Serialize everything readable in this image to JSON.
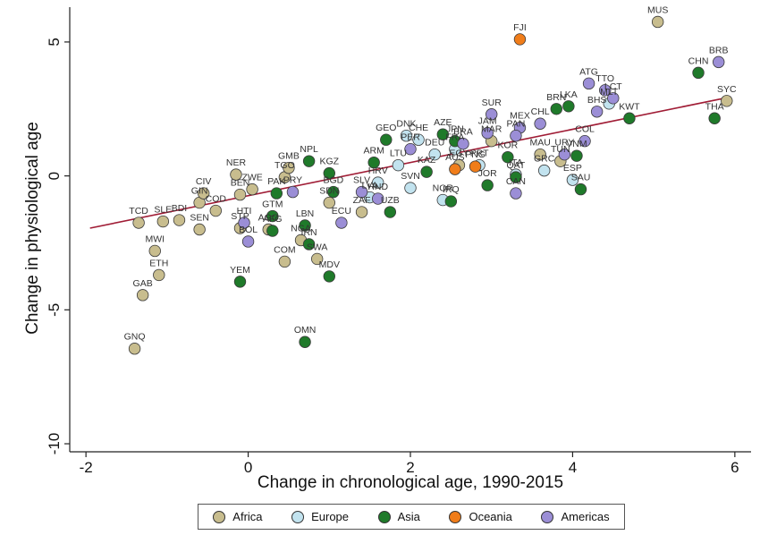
{
  "chart_data": {
    "type": "scatter",
    "xlabel": "Change in chronological age, 1990-2015",
    "ylabel": "Change in physiological age",
    "xlim": [
      -2.2,
      6.2
    ],
    "ylim": [
      -10.3,
      6.3
    ],
    "xticks": [
      -2,
      0,
      2,
      4,
      6
    ],
    "yticks": [
      -10,
      -5,
      0,
      5
    ],
    "grid": false,
    "legend_position": "bottom",
    "fit_line": {
      "x": [
        -1.95,
        5.95
      ],
      "y": [
        -1.95,
        2.95
      ],
      "color": "#a01c35"
    },
    "series": [
      {
        "name": "Africa",
        "color": "#c8bd8e",
        "points": [
          {
            "x": 5.05,
            "y": 5.75,
            "label": "MUS"
          },
          {
            "x": 5.9,
            "y": 2.8,
            "label": "SYC"
          },
          {
            "x": -1.4,
            "y": -6.45,
            "label": "GNQ"
          },
          {
            "x": -1.3,
            "y": -4.45,
            "label": "GAB"
          },
          {
            "x": -1.1,
            "y": -3.7,
            "label": "ETH"
          },
          {
            "x": -1.15,
            "y": -2.8,
            "label": "MWI"
          },
          {
            "x": -1.35,
            "y": -1.75,
            "label": "TCD"
          },
          {
            "x": -1.05,
            "y": -1.7,
            "label": "SLE"
          },
          {
            "x": -0.85,
            "y": -1.65,
            "label": "BDI"
          },
          {
            "x": -0.6,
            "y": -1.0,
            "label": "GIN"
          },
          {
            "x": -0.55,
            "y": -0.65,
            "label": "CIV"
          },
          {
            "x": -0.6,
            "y": -2.0,
            "label": "SEN"
          },
          {
            "x": -0.4,
            "y": -1.3,
            "label": "COD"
          },
          {
            "x": -0.15,
            "y": 0.05,
            "label": "NER"
          },
          {
            "x": -0.1,
            "y": -0.7,
            "label": "BEN"
          },
          {
            "x": 0.05,
            "y": -0.5,
            "label": "ZWE"
          },
          {
            "x": -0.1,
            "y": -1.95,
            "label": "STP"
          },
          {
            "x": 0.25,
            "y": -2.0,
            "label": "AGO"
          },
          {
            "x": 0.45,
            "y": -0.05,
            "label": "TGO"
          },
          {
            "x": 0.5,
            "y": 0.3,
            "label": "GMB"
          },
          {
            "x": 0.45,
            "y": -3.2,
            "label": "COM"
          },
          {
            "x": 0.85,
            "y": -3.1,
            "label": "SWA"
          },
          {
            "x": 0.65,
            "y": -2.4,
            "label": "NGA"
          },
          {
            "x": 1.0,
            "y": -1.0,
            "label": "SDN"
          },
          {
            "x": 1.4,
            "y": -1.35,
            "label": "ZAF"
          },
          {
            "x": 2.6,
            "y": 0.4,
            "label": "EGY"
          },
          {
            "x": 3.0,
            "y": 1.3,
            "label": "MAR"
          },
          {
            "x": 3.85,
            "y": 0.55,
            "label": "TUN"
          },
          {
            "x": 3.6,
            "y": 0.8,
            "label": "MAU"
          }
        ]
      },
      {
        "name": "Europe",
        "color": "#c2e3ef",
        "points": [
          {
            "x": 1.95,
            "y": 1.5,
            "label": "DNK"
          },
          {
            "x": 2.1,
            "y": 1.35,
            "label": "CHE"
          },
          {
            "x": 1.6,
            "y": -0.25,
            "label": "HRV"
          },
          {
            "x": 1.85,
            "y": 0.4,
            "label": "LTU"
          },
          {
            "x": 2.0,
            "y": -0.45,
            "label": "SVN"
          },
          {
            "x": 2.3,
            "y": 0.8,
            "label": "DEU"
          },
          {
            "x": 2.4,
            "y": -0.9,
            "label": "NOR"
          },
          {
            "x": 2.55,
            "y": 1.0,
            "label": "FRA"
          },
          {
            "x": 3.3,
            "y": 0.05,
            "label": "ITA"
          },
          {
            "x": 4.0,
            "y": -0.15,
            "label": "ESP"
          },
          {
            "x": 4.45,
            "y": 2.7,
            "label": "MLT"
          },
          {
            "x": 1.5,
            "y": -0.8,
            "label": "LVA"
          },
          {
            "x": 2.85,
            "y": 0.4,
            "label": "PRT"
          },
          {
            "x": 3.65,
            "y": 0.2,
            "label": "GRC"
          }
        ]
      },
      {
        "name": "Asia",
        "color": "#1f7a2a",
        "points": [
          {
            "x": 5.55,
            "y": 3.85,
            "label": "CHN"
          },
          {
            "x": 5.75,
            "y": 2.15,
            "label": "THA"
          },
          {
            "x": 4.7,
            "y": 2.15,
            "label": "KWT"
          },
          {
            "x": 3.95,
            "y": 2.6,
            "label": "LKA"
          },
          {
            "x": 3.8,
            "y": 2.5,
            "label": "BRN"
          },
          {
            "x": 4.05,
            "y": 0.75,
            "label": "VNM"
          },
          {
            "x": 4.1,
            "y": -0.5,
            "label": "SAU"
          },
          {
            "x": -0.1,
            "y": -3.95,
            "label": "YEM"
          },
          {
            "x": 0.7,
            "y": -6.2,
            "label": "OMN"
          },
          {
            "x": 1.0,
            "y": -3.75,
            "label": "MDV"
          },
          {
            "x": 0.75,
            "y": -2.55,
            "label": "IRN"
          },
          {
            "x": 0.7,
            "y": -1.85,
            "label": "LBN"
          },
          {
            "x": 0.3,
            "y": -2.05,
            "label": "AFG"
          },
          {
            "x": 0.3,
            "y": -1.5,
            "label": "GTM"
          },
          {
            "x": 0.75,
            "y": 0.55,
            "label": "NPL"
          },
          {
            "x": 1.0,
            "y": 0.1,
            "label": "KGZ"
          },
          {
            "x": 0.35,
            "y": -0.65,
            "label": "PAK"
          },
          {
            "x": 1.05,
            "y": -0.6,
            "label": "BGD"
          },
          {
            "x": 1.55,
            "y": 0.5,
            "label": "ARM"
          },
          {
            "x": 1.7,
            "y": 1.35,
            "label": "GEO"
          },
          {
            "x": 2.2,
            "y": 0.15,
            "label": "KAZ"
          },
          {
            "x": 2.4,
            "y": 1.55,
            "label": "AZE"
          },
          {
            "x": 2.55,
            "y": 1.3,
            "label": "JPN"
          },
          {
            "x": 2.5,
            "y": -0.95,
            "label": "IRQ"
          },
          {
            "x": 2.95,
            "y": -0.35,
            "label": "JOR"
          },
          {
            "x": 3.3,
            "y": -0.05,
            "label": "QAT"
          },
          {
            "x": 1.75,
            "y": -1.35,
            "label": "UZB"
          },
          {
            "x": 3.2,
            "y": 0.7,
            "label": "KOR"
          }
        ]
      },
      {
        "name": "Oceania",
        "color": "#f07d1a",
        "points": [
          {
            "x": 3.35,
            "y": 5.1,
            "label": "FJI"
          },
          {
            "x": 2.8,
            "y": 0.35,
            "label": "PNG"
          },
          {
            "x": 2.55,
            "y": 0.25,
            "label": "AUS"
          }
        ]
      },
      {
        "name": "Americas",
        "color": "#9b8ed6",
        "points": [
          {
            "x": 5.8,
            "y": 4.25,
            "label": "BRB"
          },
          {
            "x": 4.2,
            "y": 3.45,
            "label": "ATG"
          },
          {
            "x": 4.4,
            "y": 3.2,
            "label": "TTO"
          },
          {
            "x": 4.5,
            "y": 2.9,
            "label": "LCT"
          },
          {
            "x": 4.3,
            "y": 2.4,
            "label": "BHS"
          },
          {
            "x": 4.15,
            "y": 1.3,
            "label": "COL"
          },
          {
            "x": 3.6,
            "y": 1.95,
            "label": "CHL"
          },
          {
            "x": 3.35,
            "y": 1.8,
            "label": "MEX"
          },
          {
            "x": 3.3,
            "y": 1.5,
            "label": "PAN"
          },
          {
            "x": 3.0,
            "y": 2.3,
            "label": "SUR"
          },
          {
            "x": 2.95,
            "y": 1.6,
            "label": "JAM"
          },
          {
            "x": 3.9,
            "y": 0.8,
            "label": "URY"
          },
          {
            "x": 3.3,
            "y": -0.65,
            "label": "CAN"
          },
          {
            "x": 1.4,
            "y": -0.6,
            "label": "SLV"
          },
          {
            "x": 0.55,
            "y": -0.6,
            "label": "PRY"
          },
          {
            "x": -0.05,
            "y": -1.75,
            "label": "HTI"
          },
          {
            "x": 0.0,
            "y": -2.45,
            "label": "BOL"
          },
          {
            "x": 1.15,
            "y": -1.75,
            "label": "ECU"
          },
          {
            "x": 1.6,
            "y": -0.85,
            "label": "HND"
          },
          {
            "x": 2.65,
            "y": 1.2,
            "label": "BRA"
          },
          {
            "x": 2.0,
            "y": 1.0,
            "label": "PER"
          }
        ]
      }
    ]
  }
}
